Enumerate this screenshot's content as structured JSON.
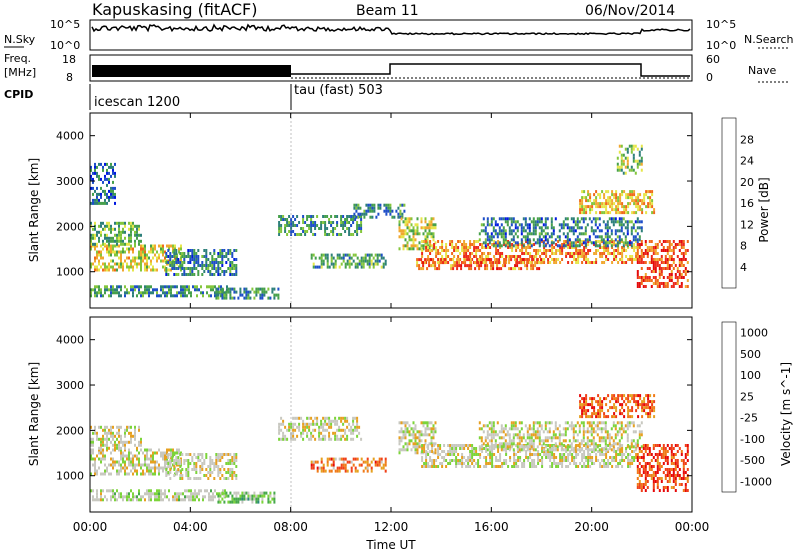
{
  "header": {
    "station": "Kapuskasing (fitACF)",
    "beam": "Beam 11",
    "date": "06/Nov/2014"
  },
  "noise_panel": {
    "left_label": "N.Sky",
    "left_ticks": [
      "10^5",
      "10^0"
    ],
    "right_label": "N.Search",
    "right_ticks": [
      "10^5",
      "10^0"
    ]
  },
  "freq_panel": {
    "left_label_line1": "Freq.",
    "left_label_line2": "[MHz]",
    "left_ticks": [
      "18",
      "8"
    ],
    "right_label": "Nave",
    "right_ticks": [
      "60",
      "0"
    ]
  },
  "cpid": {
    "label": "CPID",
    "modes": [
      {
        "name": "icescan 1200",
        "start_hour": 0,
        "end_hour": 8
      },
      {
        "name": "tau (fast) 503",
        "start_hour": 8,
        "end_hour": 24
      }
    ]
  },
  "x_axis": {
    "label": "Time UT",
    "ticks": [
      "00:00",
      "04:00",
      "08:00",
      "12:00",
      "16:00",
      "20:00",
      "00:00"
    ]
  },
  "chart_data": [
    {
      "type": "heatmap",
      "name": "power",
      "ylabel": "Slant Range [km]",
      "xlim": [
        0,
        24
      ],
      "ylim": [
        200,
        4500
      ],
      "yticks": [
        "1000",
        "2000",
        "3000",
        "4000"
      ],
      "colorbar": {
        "label": "Power [dB]",
        "ticks": [
          "4",
          "8",
          "12",
          "16",
          "20",
          "24",
          "28"
        ],
        "colors": [
          "#0018e0",
          "#1e4ec8",
          "#2d7f7a",
          "#46a04b",
          "#84c63c",
          "#e6e64a",
          "#f0a830",
          "#f06a1a",
          "#ec2a1c",
          "#e40a0a"
        ]
      },
      "echo_regions": [
        {
          "t": [
            0.0,
            3.6
          ],
          "r": [
            1050,
            1600
          ],
          "level": 0.55
        },
        {
          "t": [
            0.0,
            2.0
          ],
          "r": [
            1600,
            2100
          ],
          "level": 0.4
        },
        {
          "t": [
            0.0,
            1.0
          ],
          "r": [
            2500,
            3400
          ],
          "level": 0.2
        },
        {
          "t": [
            0.0,
            5.5
          ],
          "r": [
            450,
            700
          ],
          "level": 0.3
        },
        {
          "t": [
            3.0,
            5.8
          ],
          "r": [
            950,
            1500
          ],
          "level": 0.25
        },
        {
          "t": [
            5.0,
            7.5
          ],
          "r": [
            400,
            650
          ],
          "level": 0.3
        },
        {
          "t": [
            7.5,
            10.8
          ],
          "r": [
            1800,
            2250
          ],
          "level": 0.3
        },
        {
          "t": [
            8.8,
            11.8
          ],
          "r": [
            1100,
            1400
          ],
          "level": 0.35
        },
        {
          "t": [
            10.5,
            12.5
          ],
          "r": [
            2200,
            2500
          ],
          "level": 0.3
        },
        {
          "t": [
            12.3,
            13.8
          ],
          "r": [
            1500,
            2200
          ],
          "level": 0.5
        },
        {
          "t": [
            13.2,
            21.8
          ],
          "r": [
            1200,
            1700
          ],
          "level": 0.7
        },
        {
          "t": [
            13.0,
            18.0
          ],
          "r": [
            1100,
            1300
          ],
          "level": 0.75
        },
        {
          "t": [
            15.5,
            22.0
          ],
          "r": [
            1600,
            2200
          ],
          "level": 0.25
        },
        {
          "t": [
            19.5,
            22.5
          ],
          "r": [
            2300,
            2800
          ],
          "level": 0.6
        },
        {
          "t": [
            21.8,
            23.8
          ],
          "r": [
            700,
            1700
          ],
          "level": 0.8
        },
        {
          "t": [
            21.0,
            22.0
          ],
          "r": [
            3200,
            3800
          ],
          "level": 0.45
        }
      ]
    },
    {
      "type": "heatmap",
      "name": "velocity",
      "ylabel": "Slant Range [km]",
      "xlim": [
        0,
        24
      ],
      "ylim": [
        200,
        4500
      ],
      "yticks": [
        "1000",
        "2000",
        "3000",
        "4000"
      ],
      "colorbar": {
        "label": "Velocity [m s^-1]",
        "ticks": [
          "1000",
          "500",
          "100",
          "25",
          "-25",
          "-100",
          "-500",
          "-1000"
        ],
        "colors": [
          "#1f3fd0",
          "#2a8a7a",
          "#46a84a",
          "#7cd43a",
          "#c8c8c0",
          "#c8c8c0",
          "#e6a020",
          "#f07a18",
          "#f04018",
          "#e60808"
        ]
      },
      "echo_regions": [
        {
          "t": [
            0.0,
            3.6
          ],
          "r": [
            1050,
            1600
          ],
          "level": 0.5
        },
        {
          "t": [
            0.0,
            2.0
          ],
          "r": [
            1600,
            2100
          ],
          "level": 0.5
        },
        {
          "t": [
            0.0,
            5.5
          ],
          "r": [
            450,
            700
          ],
          "level": 0.45
        },
        {
          "t": [
            3.0,
            5.8
          ],
          "r": [
            950,
            1500
          ],
          "level": 0.5
        },
        {
          "t": [
            5.0,
            7.5
          ],
          "r": [
            400,
            650
          ],
          "level": 0.35
        },
        {
          "t": [
            7.5,
            10.8
          ],
          "r": [
            1800,
            2300
          ],
          "level": 0.5
        },
        {
          "t": [
            8.8,
            11.8
          ],
          "r": [
            1100,
            1400
          ],
          "level": 0.75
        },
        {
          "t": [
            12.3,
            13.8
          ],
          "r": [
            1500,
            2200
          ],
          "level": 0.5
        },
        {
          "t": [
            13.2,
            21.8
          ],
          "r": [
            1200,
            1700
          ],
          "level": 0.5
        },
        {
          "t": [
            15.5,
            22.0
          ],
          "r": [
            1600,
            2200
          ],
          "level": 0.5
        },
        {
          "t": [
            19.5,
            22.5
          ],
          "r": [
            2300,
            2800
          ],
          "level": 0.8
        },
        {
          "t": [
            21.8,
            23.8
          ],
          "r": [
            700,
            1700
          ],
          "level": 0.85
        }
      ]
    }
  ]
}
